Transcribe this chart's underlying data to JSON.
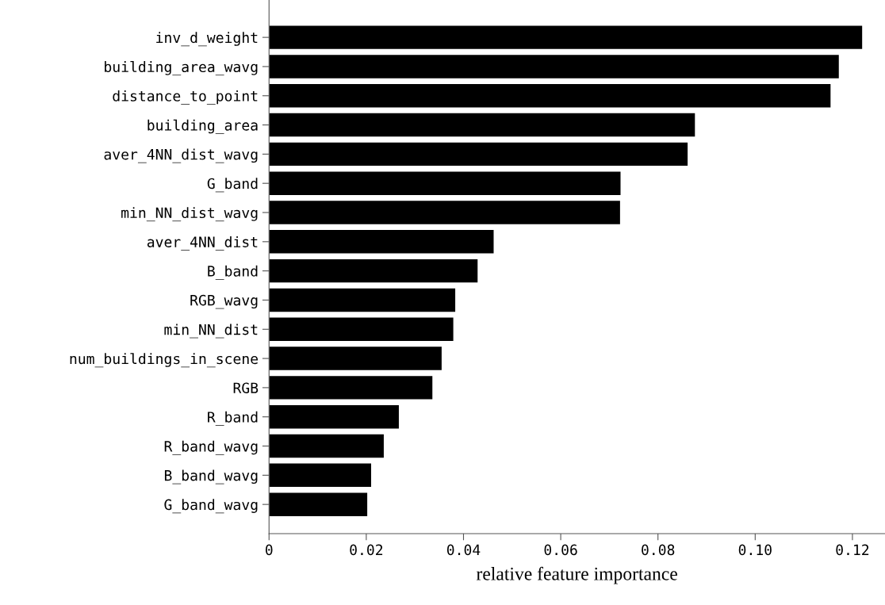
{
  "chart_data": {
    "type": "bar",
    "orientation": "horizontal",
    "xlabel": "relative feature importance",
    "categories": [
      "inv_d_weight",
      "building_area_wavg",
      "distance_to_point",
      "building_area",
      "aver_4NN_dist_wavg",
      "G_band",
      "min_NN_dist_wavg",
      "aver_4NN_dist",
      "B_band",
      "RGB_wavg",
      "min_NN_dist",
      "num_buildings_in_scene",
      "RGB",
      "R_band",
      "R_band_wavg",
      "B_band_wavg",
      "G_band_wavg"
    ],
    "values": [
      0.122,
      0.1172,
      0.1155,
      0.0876,
      0.0861,
      0.0723,
      0.0722,
      0.0462,
      0.0429,
      0.0383,
      0.0379,
      0.0355,
      0.0336,
      0.0267,
      0.0236,
      0.021,
      0.0202
    ],
    "color": "#000000",
    "xlim": [
      0,
      0.1267
    ],
    "xticks": [
      {
        "value": 0,
        "label": "0"
      },
      {
        "value": 0.02,
        "label": "0.02"
      },
      {
        "value": 0.04,
        "label": "0.04"
      },
      {
        "value": 0.06,
        "label": "0.06"
      },
      {
        "value": 0.08,
        "label": "0.08"
      },
      {
        "value": 0.1,
        "label": "0.10"
      },
      {
        "value": 0.12,
        "label": "0.12"
      }
    ],
    "grid": false,
    "legend": false
  }
}
